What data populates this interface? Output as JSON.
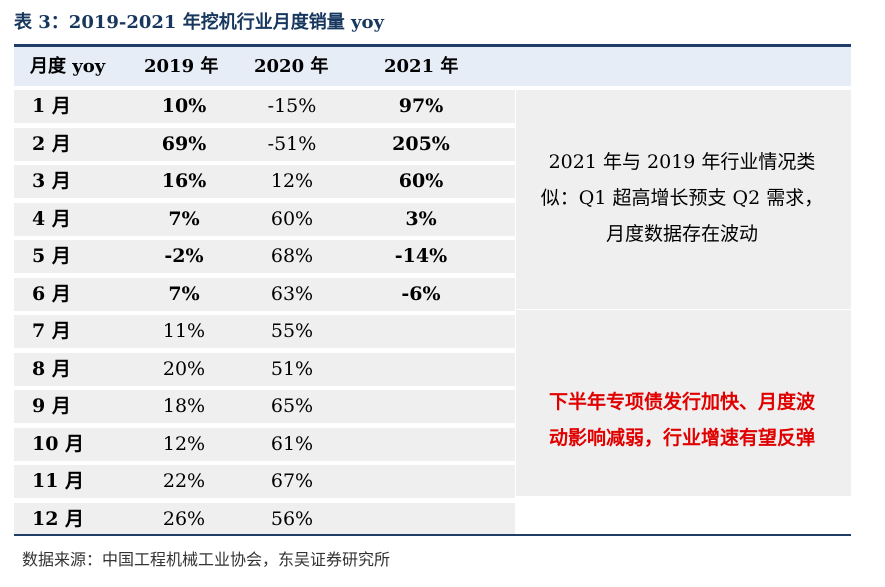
{
  "title": "表 3：2019-2021 年挖机行业月度销量 yoy",
  "header": {
    "month": "月度 yoy",
    "y2019": "2019 年",
    "y2020": "2020 年",
    "y2021": "2021 年"
  },
  "rows": [
    {
      "month": "1 月",
      "y2019": "10%",
      "y2020": "-15%",
      "y2021": "97%",
      "y2019_bold": true
    },
    {
      "month": "2 月",
      "y2019": "69%",
      "y2020": "-51%",
      "y2021": "205%",
      "y2019_bold": true
    },
    {
      "month": "3 月",
      "y2019": "16%",
      "y2020": "12%",
      "y2021": "60%",
      "y2019_bold": true
    },
    {
      "month": "4 月",
      "y2019": "7%",
      "y2020": "60%",
      "y2021": "3%",
      "y2019_bold": true
    },
    {
      "month": "5 月",
      "y2019": "-2%",
      "y2020": "68%",
      "y2021": "-14%",
      "y2019_bold": true
    },
    {
      "month": "6 月",
      "y2019": "7%",
      "y2020": "63%",
      "y2021": "-6%",
      "y2019_bold": true
    },
    {
      "month": "7 月",
      "y2019": "11%",
      "y2020": "55%",
      "y2021": "",
      "y2019_bold": false
    },
    {
      "month": "8 月",
      "y2019": "20%",
      "y2020": "51%",
      "y2021": "",
      "y2019_bold": false
    },
    {
      "month": "9 月",
      "y2019": "18%",
      "y2020": "65%",
      "y2021": "",
      "y2019_bold": false
    },
    {
      "month": "10 月",
      "y2019": "12%",
      "y2020": "61%",
      "y2021": "",
      "y2019_bold": false
    },
    {
      "month": "11 月",
      "y2019": "22%",
      "y2020": "67%",
      "y2021": "",
      "y2019_bold": false
    },
    {
      "month": "12 月",
      "y2019": "26%",
      "y2020": "56%",
      "y2021": "",
      "y2019_bold": false
    }
  ],
  "note1": {
    "line1": "2021 年与 2019 年行业情况类",
    "line2": "似：Q1 超高增长预支 Q2 需求，",
    "line3": "月度数据存在波动"
  },
  "note2": {
    "line1": "下半年专项债发行加快、月度波",
    "line2": "动影响减弱，行业增速有望反弹"
  },
  "note2_color": "#e00000",
  "source": "数据来源：中国工程机械工业协会，东吴证券研究所"
}
